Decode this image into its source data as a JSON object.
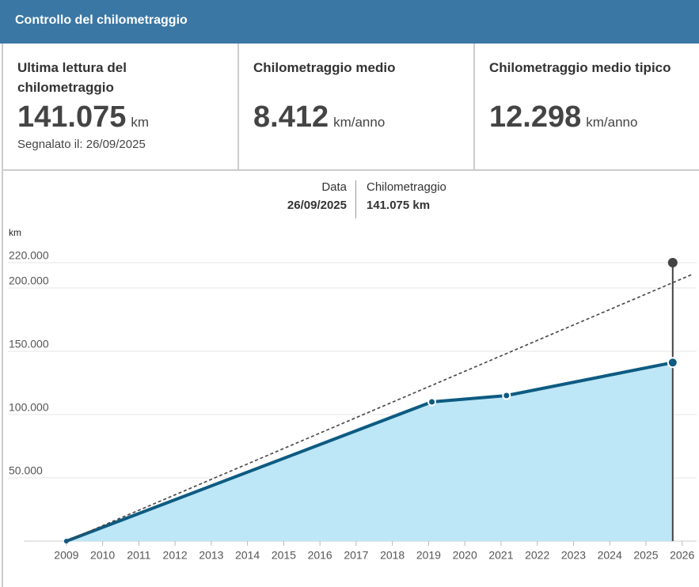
{
  "header": {
    "title": "Controllo del chilometraggio"
  },
  "stats": [
    {
      "label": "Ultima lettura del chilometraggio",
      "value": "141.075",
      "unit": "km",
      "note": "Segnalato il: 26/09/2025"
    },
    {
      "label": "Chilometraggio medio",
      "value": "8.412",
      "unit": "km/anno"
    },
    {
      "label": "Chilometraggio medio tipico",
      "value": "12.298",
      "unit": "km/anno"
    }
  ],
  "tooltip": {
    "date_label": "Data",
    "date": "26/09/2025",
    "km_label": "Chilometraggio",
    "km": "141.075 km"
  },
  "chart_data": {
    "type": "area",
    "y_label": "km",
    "xlim": [
      2008.5,
      2026.4
    ],
    "xticks": [
      2009,
      2010,
      2011,
      2012,
      2013,
      2014,
      2015,
      2016,
      2017,
      2018,
      2019,
      2020,
      2021,
      2022,
      2023,
      2024,
      2025,
      2026
    ],
    "ylim": [
      0,
      220000
    ],
    "yticks": [
      {
        "value": 50000,
        "label": "50.000"
      },
      {
        "value": 100000,
        "label": "100.000"
      },
      {
        "value": 150000,
        "label": "150.000"
      },
      {
        "value": 200000,
        "label": "200.000"
      },
      {
        "value": 220000,
        "label": "220.000"
      }
    ],
    "grid": true,
    "series": [
      {
        "color": "#0d5b82",
        "fill": "#bde6f6",
        "x": [
          2009,
          2019.09,
          2021.15,
          2025.74
        ],
        "values": [
          0,
          110000,
          115000,
          141075
        ]
      },
      {
        "color": "#444444",
        "style": "dashed",
        "x": [
          2009,
          2026.3
        ],
        "values": [
          0,
          211000
        ]
      }
    ]
  }
}
